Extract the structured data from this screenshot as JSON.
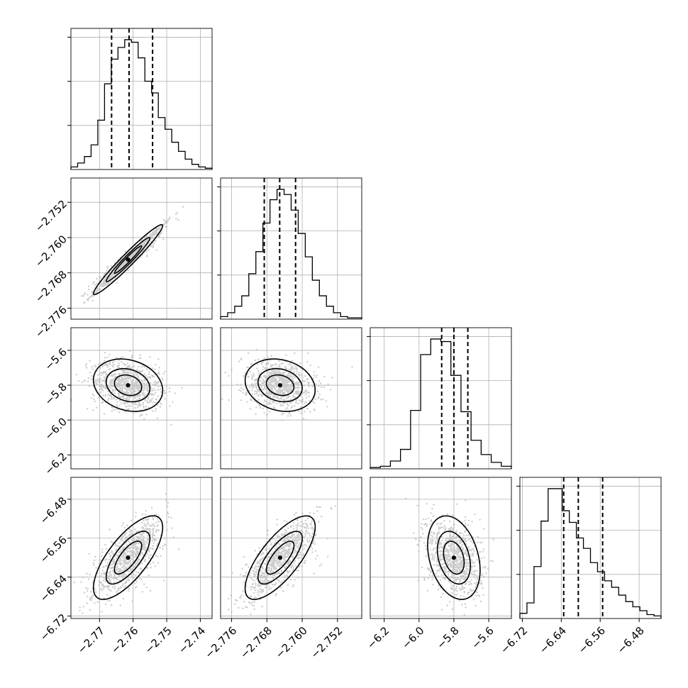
{
  "chart_data": {
    "type": "corner",
    "grid": true,
    "parameters": [
      {
        "samples": {
          "mean": -2.7615,
          "sd": 0.0048
        },
        "range": [
          -2.7785,
          -2.7365
        ],
        "ticks": [
          -2.77,
          -2.76,
          -2.75,
          -2.74
        ],
        "tick_labels": [
          "−2.77",
          "−2.76",
          "−2.75",
          "−2.74"
        ],
        "quantiles": [
          -2.7664,
          -2.7612,
          -2.7542
        ]
      },
      {
        "samples": {
          "mean": -2.765,
          "sd": 0.0037
        },
        "range": [
          -2.7785,
          -2.7465
        ],
        "ticks": [
          -2.776,
          -2.768,
          -2.76,
          -2.752
        ],
        "tick_labels": [
          "−2.776",
          "−2.768",
          "−2.760",
          "−2.752"
        ],
        "quantiles": [
          -2.7686,
          -2.7651,
          -2.7615
        ]
      },
      {
        "samples": {
          "mean": -5.8,
          "sd": 0.07
        },
        "range": [
          -6.28,
          -5.47
        ],
        "ticks": [
          -6.2,
          -6.0,
          -5.8,
          -5.6
        ],
        "tick_labels": [
          "−6.2",
          "−6.0",
          "−5.8",
          "−5.6"
        ],
        "quantiles": [
          -5.87,
          -5.8,
          -5.72
        ]
      },
      {
        "samples": {
          "mean": -6.6,
          "sd": 0.04
        },
        "range": [
          -6.725,
          -6.435
        ],
        "ticks": [
          -6.72,
          -6.64,
          -6.56,
          -6.48
        ],
        "tick_labels": [
          "−6.72",
          "−6.64",
          "−6.56",
          "−6.48"
        ],
        "quantiles": [
          -6.635,
          -6.605,
          -6.555
        ]
      }
    ],
    "histograms": [
      [
        0.02,
        0.05,
        0.1,
        0.19,
        0.38,
        0.66,
        0.85,
        0.94,
        1.0,
        0.98,
        0.86,
        0.68,
        0.59,
        0.4,
        0.31,
        0.21,
        0.14,
        0.08,
        0.04,
        0.02,
        0.01
      ],
      [
        0.02,
        0.05,
        0.1,
        0.18,
        0.35,
        0.52,
        0.74,
        0.92,
        1.0,
        0.96,
        0.84,
        0.66,
        0.48,
        0.3,
        0.18,
        0.1,
        0.05,
        0.02,
        0.01,
        0.01
      ],
      [
        0.01,
        0.02,
        0.06,
        0.15,
        0.45,
        0.88,
        1.0,
        0.98,
        0.72,
        0.44,
        0.22,
        0.11,
        0.05,
        0.02
      ],
      [
        0.04,
        0.12,
        0.4,
        0.75,
        1.0,
        1.0,
        0.83,
        0.74,
        0.62,
        0.54,
        0.43,
        0.36,
        0.29,
        0.24,
        0.18,
        0.13,
        0.09,
        0.06,
        0.03,
        0.02
      ]
    ],
    "correlations": [
      [
        1.0,
        0.97,
        -0.2,
        0.72
      ],
      [
        0.97,
        1.0,
        -0.18,
        0.74
      ],
      [
        -0.2,
        -0.18,
        1.0,
        -0.3
      ],
      [
        0.72,
        0.74,
        -0.3,
        1.0
      ]
    ]
  }
}
